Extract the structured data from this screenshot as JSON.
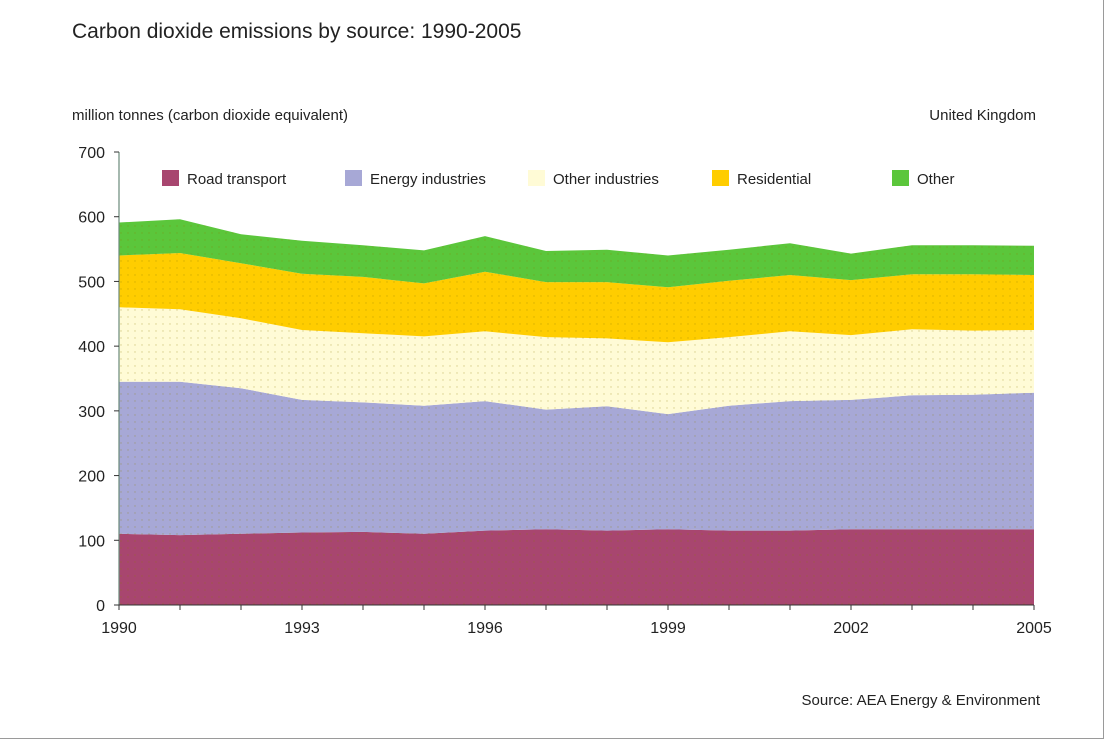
{
  "chart_data": {
    "type": "area",
    "stacked": true,
    "title": "Carbon dioxide emissions by source: 1990-2005",
    "ylabel": "million tonnes (carbon dioxide equivalent)",
    "region_label": "United Kingdom",
    "source": "Source: AEA Energy & Environment",
    "x": [
      1990,
      1991,
      1992,
      1993,
      1994,
      1995,
      1996,
      1997,
      1998,
      1999,
      2000,
      2001,
      2002,
      2003,
      2004,
      2005
    ],
    "xticks": [
      "1990",
      "1993",
      "1996",
      "1999",
      "2002",
      "2005"
    ],
    "yticks": [
      "0",
      "100",
      "200",
      "300",
      "400",
      "500",
      "600",
      "700"
    ],
    "ylim": [
      0,
      700
    ],
    "legend_position": "top",
    "series": [
      {
        "name": "Road transport",
        "color": "#a8466f",
        "values": [
          110,
          108,
          110,
          112,
          113,
          110,
          115,
          117,
          115,
          117,
          115,
          115,
          117,
          117,
          117,
          117
        ]
      },
      {
        "name": "Energy industries",
        "color": "#a7a8d6",
        "values": [
          235,
          237,
          225,
          205,
          200,
          198,
          200,
          185,
          192,
          178,
          193,
          200,
          200,
          207,
          208,
          211
        ]
      },
      {
        "name": "Other industries",
        "color": "#fffbd6",
        "values": [
          115,
          112,
          108,
          108,
          107,
          107,
          108,
          112,
          105,
          111,
          106,
          108,
          100,
          102,
          99,
          97
        ]
      },
      {
        "name": "Residential",
        "color": "#ffcd00",
        "values": [
          80,
          87,
          85,
          87,
          87,
          82,
          92,
          85,
          87,
          85,
          87,
          87,
          85,
          85,
          87,
          85
        ]
      },
      {
        "name": "Other",
        "color": "#5bc63b",
        "values": [
          51,
          52,
          45,
          51,
          49,
          51,
          55,
          48,
          50,
          49,
          48,
          49,
          41,
          45,
          45,
          45
        ]
      }
    ]
  }
}
